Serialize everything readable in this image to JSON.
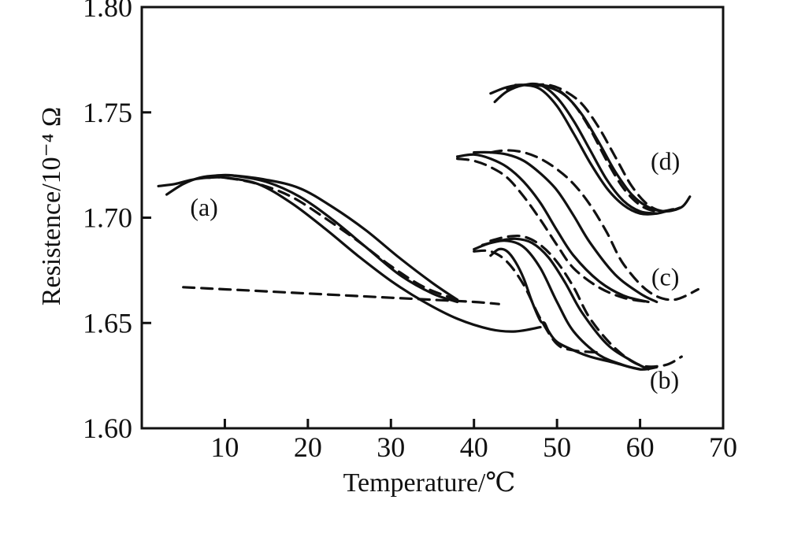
{
  "chart_data": {
    "type": "line",
    "title": "",
    "xlabel": "Temperature/℃",
    "ylabel": "Resistence/10⁻⁴ Ω",
    "xlim": [
      0,
      70
    ],
    "ylim": [
      1.6,
      1.8
    ],
    "xticks": [
      10,
      20,
      30,
      40,
      50,
      60,
      70
    ],
    "yticks": [
      1.6,
      1.65,
      1.7,
      1.75,
      1.8
    ],
    "x_tick_labels": [
      "10",
      "20",
      "30",
      "40",
      "50",
      "60",
      "70"
    ],
    "y_tick_labels": [
      "1.60",
      "1.65",
      "1.70",
      "1.75",
      "1.80"
    ],
    "grid": false,
    "curve_labels": [
      "(a)",
      "(b)",
      "(c)",
      "(d)"
    ],
    "series": [
      {
        "group": "(a)",
        "style": "solid",
        "x": [
          2,
          4,
          6,
          8,
          10,
          14,
          18,
          22,
          26,
          30,
          34,
          38,
          42,
          45,
          48
        ],
        "y": [
          1.715,
          1.716,
          1.718,
          1.719,
          1.719,
          1.716,
          1.707,
          1.695,
          1.682,
          1.67,
          1.66,
          1.652,
          1.647,
          1.646,
          1.648
        ]
      },
      {
        "group": "(a)",
        "style": "solid",
        "x": [
          3,
          5,
          7,
          9,
          11,
          15,
          19,
          23,
          27,
          31,
          35,
          38
        ],
        "y": [
          1.711,
          1.716,
          1.719,
          1.72,
          1.72,
          1.717,
          1.71,
          1.699,
          1.686,
          1.673,
          1.664,
          1.66
        ]
      },
      {
        "group": "(a)",
        "style": "dashed",
        "x": [
          8,
          10,
          14,
          18,
          22,
          26,
          30,
          34,
          38
        ],
        "y": [
          1.719,
          1.719,
          1.716,
          1.71,
          1.7,
          1.689,
          1.677,
          1.667,
          1.661
        ]
      },
      {
        "group": "(a)",
        "style": "solid",
        "x": [
          9,
          11,
          15,
          19,
          23,
          27,
          31,
          35,
          38
        ],
        "y": [
          1.72,
          1.72,
          1.718,
          1.714,
          1.705,
          1.694,
          1.681,
          1.669,
          1.661
        ]
      },
      {
        "group": "(a)",
        "style": "dashed",
        "x": [
          5,
          10,
          15,
          20,
          25,
          30,
          35,
          40,
          43
        ],
        "y": [
          1.667,
          1.666,
          1.665,
          1.664,
          1.663,
          1.662,
          1.661,
          1.66,
          1.659
        ]
      },
      {
        "group": "(b)",
        "style": "solid",
        "x": [
          42,
          43,
          44,
          45,
          46,
          47,
          48,
          48.5,
          49,
          50,
          52,
          54,
          57,
          60,
          62
        ],
        "y": [
          1.682,
          1.685,
          1.684,
          1.679,
          1.671,
          1.66,
          1.651,
          1.65,
          1.646,
          1.641,
          1.637,
          1.634,
          1.631,
          1.628,
          1.629
        ]
      },
      {
        "group": "(b)",
        "style": "dashed",
        "x": [
          40,
          42,
          44,
          46,
          48,
          50,
          52,
          55
        ],
        "y": [
          1.684,
          1.684,
          1.679,
          1.668,
          1.652,
          1.64,
          1.637,
          1.636
        ]
      },
      {
        "group": "(b)",
        "style": "solid",
        "x": [
          40,
          42,
          44,
          46,
          48,
          50,
          52,
          55,
          58,
          60
        ],
        "y": [
          1.685,
          1.688,
          1.689,
          1.686,
          1.676,
          1.66,
          1.646,
          1.635,
          1.63,
          1.628
        ]
      },
      {
        "group": "(b)",
        "style": "solid",
        "x": [
          41,
          43,
          45,
          47,
          49,
          51,
          53,
          56,
          59,
          61
        ],
        "y": [
          1.687,
          1.689,
          1.69,
          1.688,
          1.681,
          1.669,
          1.655,
          1.64,
          1.632,
          1.628
        ]
      },
      {
        "group": "(b)",
        "style": "dashed",
        "x": [
          42,
          44,
          46,
          48,
          50,
          52,
          54,
          57,
          60,
          63,
          65
        ],
        "y": [
          1.689,
          1.691,
          1.691,
          1.687,
          1.679,
          1.667,
          1.652,
          1.638,
          1.63,
          1.63,
          1.634
        ]
      },
      {
        "group": "(c)",
        "style": "dashed",
        "x": [
          38,
          40,
          42,
          44,
          46,
          48,
          50,
          52,
          55,
          58,
          61
        ],
        "y": [
          1.728,
          1.727,
          1.724,
          1.719,
          1.71,
          1.699,
          1.687,
          1.676,
          1.667,
          1.662,
          1.66
        ]
      },
      {
        "group": "(c)",
        "style": "solid",
        "x": [
          38,
          40,
          42,
          44,
          46,
          48,
          50,
          52,
          55,
          58,
          61
        ],
        "y": [
          1.729,
          1.73,
          1.728,
          1.724,
          1.717,
          1.707,
          1.694,
          1.682,
          1.67,
          1.663,
          1.66
        ]
      },
      {
        "group": "(c)",
        "style": "solid",
        "x": [
          40,
          42,
          44,
          46,
          48,
          50,
          52,
          54,
          57,
          60,
          62
        ],
        "y": [
          1.731,
          1.731,
          1.73,
          1.727,
          1.721,
          1.713,
          1.701,
          1.688,
          1.673,
          1.664,
          1.66
        ]
      },
      {
        "group": "(c)",
        "style": "dashed",
        "x": [
          42,
          44,
          46,
          48,
          50,
          52,
          54,
          56,
          58,
          61,
          64,
          67
        ],
        "y": [
          1.731,
          1.732,
          1.731,
          1.728,
          1.723,
          1.716,
          1.706,
          1.693,
          1.678,
          1.665,
          1.661,
          1.666
        ]
      },
      {
        "group": "(d)",
        "style": "solid",
        "x": [
          42,
          44,
          46,
          48,
          50,
          52,
          54,
          56,
          58,
          60,
          62,
          64
        ],
        "y": [
          1.759,
          1.762,
          1.763,
          1.761,
          1.753,
          1.74,
          1.726,
          1.714,
          1.706,
          1.702,
          1.702,
          1.704
        ]
      },
      {
        "group": "(d)",
        "style": "solid",
        "x": [
          42.5,
          44,
          46,
          48,
          50,
          52,
          54,
          56,
          58,
          60,
          62
        ],
        "y": [
          1.755,
          1.76,
          1.763,
          1.763,
          1.757,
          1.746,
          1.732,
          1.718,
          1.708,
          1.703,
          1.702
        ]
      },
      {
        "group": "(d)",
        "style": "dashed",
        "x": [
          44,
          46,
          48,
          50,
          52,
          54,
          56,
          58,
          60,
          62,
          64
        ],
        "y": [
          1.761,
          1.763,
          1.763,
          1.761,
          1.754,
          1.742,
          1.727,
          1.714,
          1.706,
          1.703,
          1.704
        ]
      },
      {
        "group": "(d)",
        "style": "solid",
        "x": [
          45,
          47,
          49,
          51,
          53,
          55,
          57,
          59,
          61,
          63,
          65,
          66
        ],
        "y": [
          1.763,
          1.763,
          1.762,
          1.758,
          1.749,
          1.736,
          1.722,
          1.711,
          1.705,
          1.703,
          1.705,
          1.71
        ]
      },
      {
        "group": "(d)",
        "style": "dashed",
        "x": [
          47,
          49,
          51,
          53,
          55,
          57,
          59,
          61,
          63,
          65
        ],
        "y": [
          1.763,
          1.763,
          1.76,
          1.754,
          1.743,
          1.729,
          1.715,
          1.706,
          1.703,
          1.705
        ]
      }
    ]
  }
}
